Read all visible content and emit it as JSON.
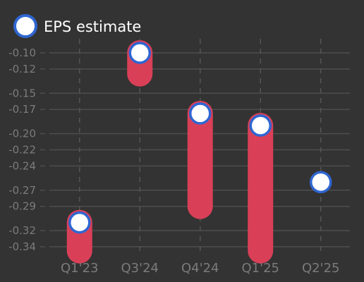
{
  "colors": {
    "background": "#333333",
    "grid": "#4e4e4e",
    "dashed_vertical": "#555555",
    "bar": "#d94058",
    "marker_fill": "#ffffff",
    "marker_stroke": "#2f66d1",
    "tick_text": "#7b7b7b",
    "legend_text": "#ffffff"
  },
  "chart_data": {
    "type": "bar",
    "categories": [
      "Q1'23",
      "Q3'24",
      "Q4'24",
      "Q1'25",
      "Q2'25"
    ],
    "y_ticks": [
      -0.1,
      -0.12,
      -0.15,
      -0.17,
      -0.2,
      -0.22,
      -0.24,
      -0.27,
      -0.29,
      -0.32,
      -0.34
    ],
    "y_tick_labels": [
      "-0.10",
      "-0.12",
      "-0.15",
      "-0.17",
      "-0.20",
      "-0.22",
      "-0.24",
      "-0.27",
      "-0.29",
      "-0.32",
      "-0.34"
    ],
    "ylim": [
      -0.35,
      -0.095
    ],
    "grid": true,
    "legend_position": "top-left",
    "series": [
      {
        "name": "EPS estimate",
        "style": "marker",
        "values": [
          -0.31,
          -0.1,
          -0.175,
          -0.19,
          -0.26
        ]
      },
      {
        "style": "range-bar",
        "ranges": [
          [
            -0.345,
            -0.31
          ],
          [
            -0.126,
            -0.1
          ],
          [
            -0.29,
            -0.175
          ],
          [
            -0.345,
            -0.19
          ],
          null
        ]
      }
    ]
  }
}
